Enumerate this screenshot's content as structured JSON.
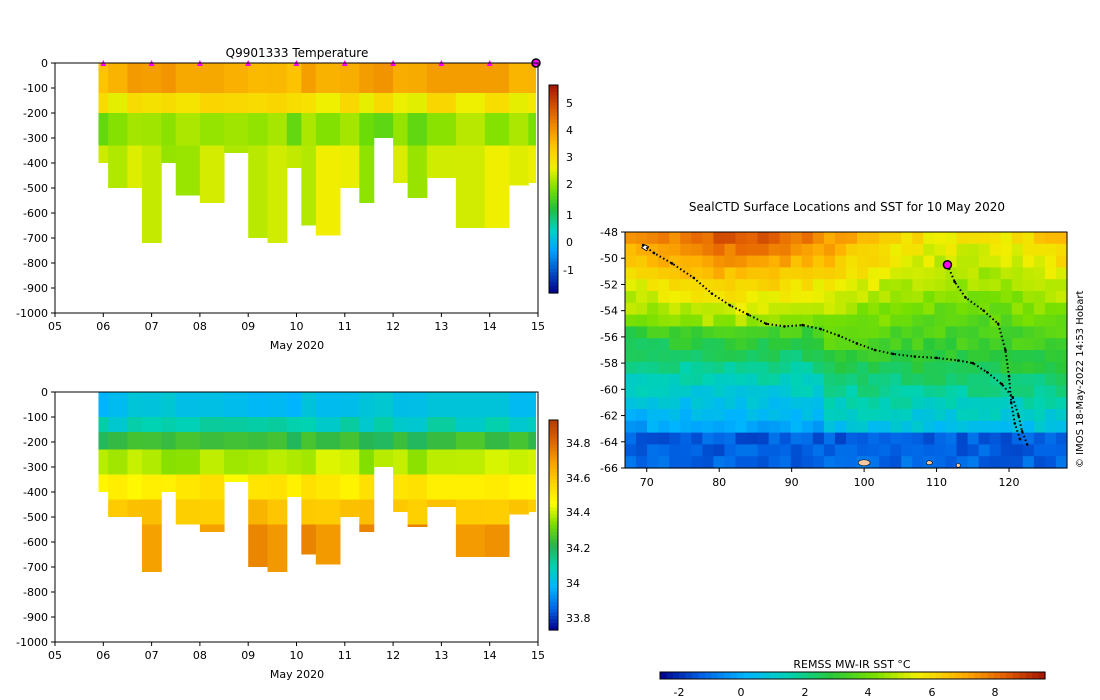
{
  "temperature_panel": {
    "title": "Q9901333  Temperature",
    "xlabel": "May 2020",
    "colorbar_ticks": [
      "5",
      "4",
      "3",
      "2",
      "1",
      "0",
      "-1"
    ]
  },
  "salinity_panel": {
    "xlabel": "May 2020",
    "colorbar_ticks": [
      "34.8",
      "34.6",
      "34.4",
      "34.2",
      "34",
      "33.8"
    ]
  },
  "map_panel": {
    "title": "SealCTD Surface Locations and SST for 10 May 2020",
    "colorbar_label": "REMSS MW-IR SST °C",
    "colorbar_ticks": [
      "-2",
      "0",
      "2",
      "4",
      "6",
      "8"
    ],
    "credit": "© IMOS 18-May-2022 14:53 Hobart"
  },
  "colors": {
    "temp_scale": [
      "#00008b",
      "#0050c8",
      "#00a0ff",
      "#00d2c8",
      "#20c040",
      "#78e000",
      "#f0f000",
      "#ffc800",
      "#f08c00",
      "#d25000",
      "#a01400"
    ],
    "sal_scale": [
      "#00008b",
      "#0064e6",
      "#00b4ff",
      "#00d2b4",
      "#28b450",
      "#78dc00",
      "#ffff00",
      "#ffd200",
      "#f5a000",
      "#dc6400",
      "#b43c00"
    ],
    "sst_scale": [
      "#00008b",
      "#0064e6",
      "#00b4ff",
      "#00d2b4",
      "#28c83c",
      "#78e000",
      "#f0f000",
      "#ffb400",
      "#e66400",
      "#a01400"
    ],
    "land": "#f5c8a0",
    "track": "#000000",
    "marker": "#ff00ff"
  },
  "chart_data": [
    {
      "id": "temperature",
      "type": "heatmap",
      "title": "Q9901333  Temperature",
      "xlabel": "May 2020",
      "ylabel": "",
      "xlim": [
        5,
        15
      ],
      "ylim": [
        -1000,
        0
      ],
      "x_ticks": [
        "05",
        "06",
        "07",
        "08",
        "09",
        "10",
        "11",
        "12",
        "13",
        "14",
        "15"
      ],
      "y_ticks": [
        0,
        -100,
        -200,
        -300,
        -400,
        -500,
        -600,
        -700,
        -800,
        -900,
        -1000
      ],
      "colorbar": {
        "min": -2,
        "max": 6,
        "ticks": [
          5,
          4,
          3,
          2,
          1,
          0,
          -1
        ]
      },
      "profiles": [
        {
          "day": 5.9,
          "max_depth": 400
        },
        {
          "day": 6.1,
          "max_depth": 500
        },
        {
          "day": 6.5,
          "max_depth": 500
        },
        {
          "day": 6.8,
          "max_depth": 720
        },
        {
          "day": 7.2,
          "max_depth": 400
        },
        {
          "day": 7.5,
          "max_depth": 530
        },
        {
          "day": 8.0,
          "max_depth": 560
        },
        {
          "day": 8.5,
          "max_depth": 360
        },
        {
          "day": 9.0,
          "max_depth": 700
        },
        {
          "day": 9.4,
          "max_depth": 720
        },
        {
          "day": 9.8,
          "max_depth": 420
        },
        {
          "day": 10.1,
          "max_depth": 650
        },
        {
          "day": 10.4,
          "max_depth": 690
        },
        {
          "day": 10.9,
          "max_depth": 500
        },
        {
          "day": 11.3,
          "max_depth": 560
        },
        {
          "day": 11.6,
          "max_depth": 300
        },
        {
          "day": 12.0,
          "max_depth": 480
        },
        {
          "day": 12.3,
          "max_depth": 540
        },
        {
          "day": 12.7,
          "max_depth": 460
        },
        {
          "day": 13.3,
          "max_depth": 660
        },
        {
          "day": 13.9,
          "max_depth": 660
        },
        {
          "day": 14.4,
          "max_depth": 490
        },
        {
          "day": 14.8,
          "max_depth": 480
        }
      ],
      "layers": [
        {
          "from": 0,
          "to": 120,
          "value": 4.0
        },
        {
          "from": 120,
          "to": 200,
          "value": 3.0
        },
        {
          "from": 200,
          "to": 330,
          "value": 2.1
        },
        {
          "from": 330,
          "to": 1000,
          "value": 2.5
        }
      ],
      "surface_markers_days": [
        6,
        7,
        8,
        9,
        10,
        11,
        12,
        13,
        14,
        15
      ]
    },
    {
      "id": "salinity",
      "type": "heatmap",
      "title": "",
      "xlabel": "May 2020",
      "ylabel": "",
      "xlim": [
        5,
        15
      ],
      "ylim": [
        -1000,
        0
      ],
      "x_ticks": [
        "05",
        "06",
        "07",
        "08",
        "09",
        "10",
        "11",
        "12",
        "13",
        "14",
        "15"
      ],
      "y_ticks": [
        0,
        -100,
        -200,
        -300,
        -400,
        -500,
        -600,
        -700,
        -800,
        -900,
        -1000
      ],
      "colorbar": {
        "min": 33.7,
        "max": 34.9,
        "ticks": [
          34.8,
          34.6,
          34.4,
          34.2,
          34,
          33.8
        ]
      },
      "layers": [
        {
          "from": 0,
          "to": 100,
          "value": 33.98
        },
        {
          "from": 100,
          "to": 160,
          "value": 34.05
        },
        {
          "from": 160,
          "to": 230,
          "value": 34.2
        },
        {
          "from": 230,
          "to": 330,
          "value": 34.35
        },
        {
          "from": 330,
          "to": 430,
          "value": 34.47
        },
        {
          "from": 430,
          "to": 530,
          "value": 34.58
        },
        {
          "from": 530,
          "to": 1000,
          "value": 34.68
        }
      ]
    },
    {
      "id": "sst_map",
      "type": "heatmap",
      "title": "SealCTD Surface Locations and SST for 10 May 2020",
      "xlabel": "",
      "ylabel": "",
      "xlim": [
        67,
        128
      ],
      "ylim": [
        -66,
        -48
      ],
      "x_ticks": [
        70,
        80,
        90,
        100,
        110,
        120
      ],
      "y_ticks": [
        -48,
        -50,
        -52,
        -54,
        -56,
        -58,
        -60,
        -62,
        -64,
        -66
      ],
      "colorbar": {
        "min": -3,
        "max": 9.5,
        "ticks": [
          -2,
          0,
          2,
          4,
          6,
          8
        ],
        "label": "REMSS MW-IR SST °C"
      },
      "track": [
        [
          69.5,
          -49.0
        ],
        [
          71,
          -49.6
        ],
        [
          73.5,
          -50.4
        ],
        [
          76.5,
          -51.5
        ],
        [
          79,
          -52.7
        ],
        [
          81.5,
          -53.6
        ],
        [
          84,
          -54.3
        ],
        [
          86.5,
          -55.0
        ],
        [
          89,
          -55.2
        ],
        [
          91.5,
          -55.1
        ],
        [
          94,
          -55.4
        ],
        [
          96.5,
          -55.9
        ],
        [
          99,
          -56.5
        ],
        [
          101.5,
          -57.0
        ],
        [
          104,
          -57.3
        ],
        [
          107,
          -57.5
        ],
        [
          110,
          -57.6
        ],
        [
          113,
          -57.8
        ],
        [
          115,
          -58.0
        ],
        [
          117,
          -58.7
        ],
        [
          119,
          -59.6
        ],
        [
          120.5,
          -60.6
        ],
        [
          121.3,
          -62.0
        ],
        [
          121.8,
          -63.2
        ],
        [
          122.5,
          -64.2
        ]
      ],
      "track2": [
        [
          111.5,
          -50.5
        ],
        [
          112.5,
          -51.8
        ],
        [
          114,
          -53.0
        ],
        [
          116.5,
          -54.0
        ],
        [
          118.5,
          -55.0
        ],
        [
          119.5,
          -57.0
        ],
        [
          120,
          -59.0
        ],
        [
          120.3,
          -61.0
        ],
        [
          120.8,
          -62.6
        ],
        [
          121.5,
          -63.8
        ]
      ],
      "marker": [
        111.5,
        -50.5
      ]
    }
  ]
}
